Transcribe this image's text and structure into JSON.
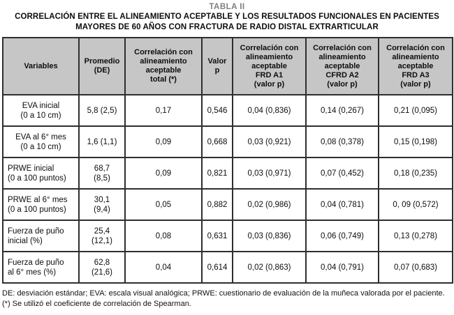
{
  "title": {
    "label": "TABLA II",
    "heading": "CORRELACIÓN ENTRE EL ALINEAMIENTO ACEPTABLE Y LOS RESULTADOS FUNCIONALES EN PACIENTES MAYORES DE 60 AÑOS CON FRACTURA DE RADIO DISTAL EXTRARTICULAR"
  },
  "colors": {
    "header_bg": "#c6c6c6",
    "border": "#2e2e2e",
    "title_gray": "#7f7f7f"
  },
  "table": {
    "headers": [
      "Variables",
      "Promedio\n(DE)",
      "Correlación con\nalineamiento\naceptable\ntotal (*)",
      "Valor\np",
      "Correlación con\nalineamiento\naceptable\nFRD A1\n(valor p)",
      "Correlación con\nalineamiento\naceptable\nCFRD A2\n(valor p)",
      "Correlación con\nalineamiento\naceptable\nFRD A3\n(valor p)"
    ],
    "rows": [
      {
        "variable": "EVA inicial\n(0 a 10 cm)",
        "promedio": "5,8 (2,5)",
        "corr_total": "0,17",
        "valor_p": "0,546",
        "frd_a1": "0,04 (0,836)",
        "cfrd_a2": "0,14 (0,267)",
        "frd_a3": "0,21 (0,095)"
      },
      {
        "variable": "EVA al 6° mes\n(0 a 10 cm)",
        "promedio": "1,6 (1,1)",
        "corr_total": "0,09",
        "valor_p": "0,668",
        "frd_a1": "0,03 (0,921)",
        "cfrd_a2": "0,08 (0,378)",
        "frd_a3": "0,15 (0,198)"
      },
      {
        "variable": "PRWE inicial\n(0 a 100 puntos)",
        "promedio": "68,7\n(8,5)",
        "corr_total": "0,09",
        "valor_p": "0,821",
        "frd_a1": "0,03 (0,971)",
        "cfrd_a2": "0,07 (0,452)",
        "frd_a3": "0,18 (0,235)"
      },
      {
        "variable": "PRWE al 6° mes\n(0 a 100 puntos)",
        "promedio": "30,1\n(9,4)",
        "corr_total": "0,05",
        "valor_p": "0,882",
        "frd_a1": "0,02 (0,986)",
        "cfrd_a2": "0,04 (0,781)",
        "frd_a3": "0, 09 (0,572)"
      },
      {
        "variable": "Fuerza de puño\ninicial (%)",
        "promedio": "25,4\n(12,1)",
        "corr_total": "0,08",
        "valor_p": "0,631",
        "frd_a1": "0,03 (0,836)",
        "cfrd_a2": "0,06 (0,749)",
        "frd_a3": "0,13 (0,278)"
      },
      {
        "variable": "Fuerza de puño\nal 6° mes (%)",
        "promedio": "62,8\n(21,6)",
        "corr_total": "0,04",
        "valor_p": "0,614",
        "frd_a1": "0,02 (0,863)",
        "cfrd_a2": "0,04 (0,791)",
        "frd_a3": "0,07 (0,683)"
      }
    ]
  },
  "footnotes": [
    "DE: desviación estándar; EVA: escala visual analógica; PRWE: cuestionario de evaluación de la muñeca valorada por el paciente.",
    "(*) Se utilizó el coeficiente de correlación de Spearman."
  ]
}
